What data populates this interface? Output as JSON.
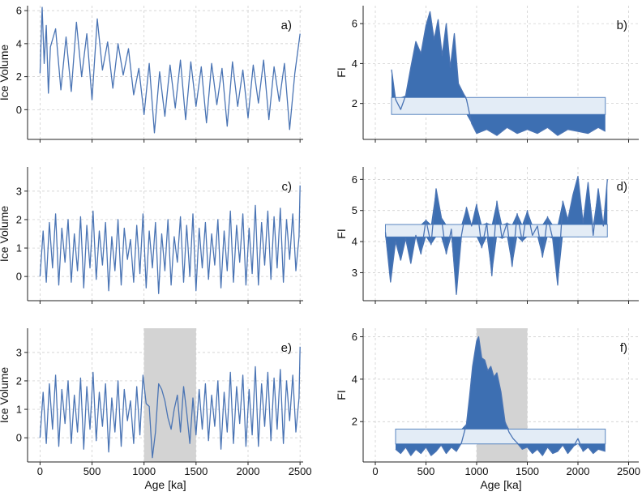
{
  "colors": {
    "line": "#4a74b4",
    "fill": "#3d6fb2",
    "band": "#e3ecf6",
    "band_edge": "#5a86c0",
    "shade": "#d3d3d3",
    "grid": "#c8c8c8"
  },
  "chart_data": [
    {
      "panel": "a)",
      "type": "line",
      "ylabel": "Ice Volume",
      "xlabel": "",
      "xlim": [
        -120,
        2530
      ],
      "ylim": [
        -1.8,
        6.3
      ],
      "yticks": [
        0,
        2,
        4,
        6
      ],
      "xticks": [
        0,
        500,
        1000,
        1500,
        2000,
        2500
      ],
      "show_xticklabels": false,
      "grid": true,
      "series": [
        {
          "x": [
            0,
            20,
            40,
            60,
            80,
            100,
            150,
            200,
            250,
            300,
            350,
            400,
            450,
            500,
            550,
            600,
            650,
            700,
            750,
            800,
            850,
            900,
            950,
            1000,
            1050,
            1100,
            1150,
            1200,
            1250,
            1300,
            1350,
            1400,
            1450,
            1500,
            1550,
            1600,
            1650,
            1700,
            1750,
            1800,
            1850,
            1900,
            1950,
            2000,
            2050,
            2100,
            2150,
            2200,
            2250,
            2300,
            2350,
            2400,
            2450,
            2500
          ],
          "y": [
            2.2,
            6.2,
            2.8,
            5.1,
            1.0,
            3.8,
            4.9,
            1.2,
            4.4,
            1.1,
            5.3,
            2.0,
            4.6,
            0.6,
            5.5,
            2.4,
            4.1,
            1.3,
            4.0,
            2.1,
            3.7,
            0.9,
            2.5,
            -0.3,
            2.8,
            -1.4,
            2.3,
            -0.4,
            2.7,
            0.1,
            3.0,
            -0.6,
            2.9,
            0.2,
            2.6,
            -0.8,
            2.8,
            0.3,
            2.5,
            -1.0,
            2.9,
            0.2,
            2.4,
            -0.5,
            2.7,
            0.4,
            3.0,
            -0.6,
            2.6,
            0.5,
            2.8,
            -1.2,
            2.2,
            4.6
          ]
        }
      ]
    },
    {
      "panel": "b)",
      "type": "area",
      "ylabel": "FI",
      "xlabel": "",
      "xlim": [
        -120,
        2600
      ],
      "ylim": [
        0.2,
        6.9
      ],
      "yticks": [
        2,
        4,
        6
      ],
      "xticks": [
        0,
        500,
        1000,
        1500,
        2000,
        2500
      ],
      "show_xticklabels": false,
      "grid": true,
      "band": [
        1.45,
        2.3
      ],
      "series": [
        {
          "x": [
            160,
            200,
            250,
            300,
            350,
            400,
            450,
            500,
            540,
            580,
            620,
            660,
            700,
            740,
            780,
            820,
            860,
            900,
            950,
            1000,
            1100,
            1200,
            1300,
            1400,
            1500,
            1600,
            1700,
            1800,
            1900,
            2000,
            2100,
            2200,
            2270
          ],
          "y": [
            3.7,
            2.2,
            1.7,
            2.4,
            3.8,
            5.1,
            4.5,
            5.9,
            6.6,
            5.2,
            6.2,
            4.4,
            6.0,
            3.8,
            5.5,
            3.0,
            2.6,
            2.2,
            1.0,
            0.5,
            0.7,
            0.4,
            0.8,
            0.5,
            0.7,
            0.5,
            0.8,
            0.4,
            0.7,
            0.6,
            0.5,
            0.8,
            0.6
          ]
        }
      ]
    },
    {
      "panel": "c)",
      "type": "line",
      "ylabel": "Ice Volume",
      "xlabel": "",
      "xlim": [
        -120,
        2530
      ],
      "ylim": [
        -0.85,
        3.85
      ],
      "yticks": [
        0,
        1,
        2,
        3
      ],
      "xticks": [
        0,
        500,
        1000,
        1500,
        2000,
        2500
      ],
      "show_xticklabels": false,
      "grid": true,
      "series": [
        {
          "x": [
            0,
            30,
            60,
            90,
            120,
            150,
            180,
            210,
            240,
            270,
            300,
            330,
            360,
            390,
            420,
            450,
            480,
            510,
            540,
            570,
            600,
            630,
            660,
            690,
            720,
            750,
            780,
            810,
            840,
            870,
            900,
            930,
            960,
            990,
            1020,
            1050,
            1080,
            1110,
            1140,
            1170,
            1200,
            1230,
            1260,
            1290,
            1320,
            1350,
            1380,
            1410,
            1440,
            1470,
            1500,
            1530,
            1560,
            1590,
            1620,
            1650,
            1680,
            1710,
            1740,
            1770,
            1800,
            1830,
            1860,
            1890,
            1920,
            1950,
            1980,
            2010,
            2040,
            2070,
            2100,
            2130,
            2160,
            2190,
            2220,
            2250,
            2280,
            2310,
            2340,
            2370,
            2400,
            2430,
            2460,
            2490,
            2500
          ],
          "y": [
            0.0,
            1.6,
            -0.2,
            1.9,
            0.3,
            2.2,
            -0.3,
            1.7,
            0.5,
            2.0,
            -0.2,
            1.5,
            0.2,
            2.1,
            -0.4,
            1.8,
            0.3,
            2.3,
            -0.1,
            1.6,
            0.4,
            1.9,
            -0.5,
            1.4,
            0.2,
            2.0,
            -0.3,
            1.7,
            0.6,
            1.3,
            -0.2,
            1.8,
            0.1,
            2.2,
            -0.4,
            1.6,
            0.3,
            1.9,
            -0.6,
            1.5,
            0.2,
            2.0,
            -0.3,
            1.4,
            0.5,
            2.1,
            -0.2,
            1.8,
            0.0,
            2.2,
            -0.5,
            1.7,
            0.3,
            1.9,
            -0.1,
            1.5,
            0.4,
            2.0,
            -0.4,
            1.6,
            0.2,
            2.3,
            -0.2,
            1.8,
            0.5,
            2.2,
            -0.3,
            1.7,
            0.1,
            2.5,
            -0.3,
            1.9,
            0.4,
            2.3,
            -0.1,
            2.1,
            0.3,
            2.4,
            -0.2,
            2.0,
            0.6,
            2.2,
            0.2,
            1.4,
            3.2
          ]
        }
      ]
    },
    {
      "panel": "d)",
      "type": "area",
      "ylabel": "FI",
      "xlabel": "",
      "xlim": [
        -120,
        2600
      ],
      "ylim": [
        2.1,
        6.4
      ],
      "yticks": [
        3,
        4,
        5,
        6
      ],
      "xticks": [
        0,
        500,
        1000,
        1500,
        2000,
        2500
      ],
      "show_xticklabels": false,
      "grid": true,
      "band": [
        4.15,
        4.55
      ],
      "series": [
        {
          "x": [
            100,
            150,
            200,
            250,
            300,
            350,
            400,
            450,
            500,
            550,
            600,
            650,
            700,
            750,
            800,
            850,
            900,
            950,
            1000,
            1050,
            1100,
            1150,
            1200,
            1250,
            1300,
            1350,
            1400,
            1450,
            1500,
            1550,
            1600,
            1650,
            1700,
            1750,
            1800,
            1850,
            1900,
            1950,
            2000,
            2050,
            2100,
            2150,
            2200,
            2250,
            2290
          ],
          "y": [
            4.3,
            2.7,
            4.0,
            3.4,
            4.1,
            3.3,
            4.2,
            3.6,
            4.7,
            3.9,
            5.7,
            4.8,
            3.6,
            4.4,
            2.3,
            4.2,
            5.1,
            4.5,
            5.2,
            3.8,
            4.6,
            2.9,
            5.3,
            4.1,
            4.6,
            3.2,
            4.9,
            4.0,
            5.0,
            4.2,
            4.5,
            3.5,
            4.8,
            4.1,
            2.6,
            5.3,
            4.7,
            5.5,
            6.1,
            4.6,
            5.9,
            4.2,
            5.7,
            4.5,
            6.0
          ]
        }
      ]
    },
    {
      "panel": "e)",
      "type": "line",
      "ylabel": "Ice Volume",
      "xlabel": "Age [ka]",
      "xlim": [
        -120,
        2530
      ],
      "ylim": [
        -0.85,
        3.85
      ],
      "yticks": [
        0,
        1,
        2,
        3
      ],
      "xticks": [
        0,
        500,
        1000,
        1500,
        2000,
        2500
      ],
      "show_xticklabels": true,
      "grid": true,
      "shade": [
        1000,
        1500
      ],
      "series": [
        {
          "x": [
            0,
            30,
            60,
            90,
            120,
            150,
            180,
            210,
            240,
            270,
            300,
            330,
            360,
            390,
            420,
            450,
            480,
            510,
            540,
            570,
            600,
            630,
            660,
            690,
            720,
            750,
            780,
            810,
            840,
            870,
            900,
            930,
            960,
            990,
            1020,
            1050,
            1080,
            1110,
            1140,
            1170,
            1200,
            1230,
            1260,
            1290,
            1320,
            1350,
            1380,
            1410,
            1440,
            1470,
            1500,
            1530,
            1560,
            1590,
            1620,
            1650,
            1680,
            1710,
            1740,
            1770,
            1800,
            1830,
            1860,
            1890,
            1920,
            1950,
            1980,
            2010,
            2040,
            2070,
            2100,
            2130,
            2160,
            2190,
            2220,
            2250,
            2280,
            2310,
            2340,
            2370,
            2400,
            2430,
            2460,
            2490,
            2500
          ],
          "y": [
            0.0,
            1.6,
            -0.2,
            1.9,
            0.3,
            2.2,
            -0.3,
            1.7,
            0.5,
            2.0,
            -0.2,
            1.5,
            0.2,
            2.1,
            -0.4,
            1.8,
            0.3,
            2.3,
            -0.1,
            1.6,
            0.4,
            1.9,
            -0.5,
            1.4,
            0.2,
            2.0,
            -0.3,
            1.7,
            0.6,
            1.3,
            -0.2,
            1.8,
            0.1,
            2.2,
            1.2,
            1.1,
            -0.7,
            0.2,
            1.9,
            1.7,
            1.3,
            0.7,
            0.3,
            1.0,
            1.5,
            0.2,
            1.8,
            0.9,
            -0.2,
            1.4,
            0.1,
            1.7,
            0.3,
            1.9,
            -0.1,
            1.5,
            0.4,
            2.0,
            -0.4,
            1.6,
            0.2,
            2.3,
            -0.2,
            1.8,
            0.5,
            2.2,
            -0.3,
            1.7,
            0.1,
            2.5,
            -0.3,
            1.9,
            0.4,
            2.3,
            -0.1,
            2.1,
            0.3,
            2.4,
            -0.2,
            2.0,
            0.6,
            2.2,
            0.2,
            1.4,
            3.2
          ]
        }
      ]
    },
    {
      "panel": "f)",
      "type": "area",
      "ylabel": "FI",
      "xlabel": "Age [ka]",
      "xlim": [
        -120,
        2600
      ],
      "ylim": [
        0.1,
        6.4
      ],
      "yticks": [
        2,
        4,
        6
      ],
      "xticks": [
        0,
        500,
        1000,
        1500,
        2000,
        2500
      ],
      "show_xticklabels": true,
      "grid": true,
      "shade": [
        1000,
        1500
      ],
      "band": [
        0.95,
        1.65
      ],
      "series": [
        {
          "x": [
            200,
            250,
            300,
            350,
            400,
            450,
            500,
            550,
            600,
            650,
            700,
            750,
            800,
            850,
            900,
            930,
            960,
            1000,
            1020,
            1050,
            1080,
            1110,
            1140,
            1170,
            1200,
            1240,
            1280,
            1320,
            1360,
            1400,
            1450,
            1500,
            1550,
            1600,
            1650,
            1700,
            1750,
            1800,
            1850,
            1900,
            1950,
            2000,
            2050,
            2100,
            2150,
            2200,
            2270
          ],
          "y": [
            0.7,
            0.5,
            0.8,
            0.4,
            0.7,
            0.5,
            0.8,
            0.4,
            0.6,
            0.9,
            0.5,
            0.8,
            0.6,
            1.0,
            1.9,
            3.2,
            4.6,
            5.8,
            6.0,
            5.0,
            4.9,
            4.4,
            4.6,
            4.1,
            4.3,
            3.4,
            2.0,
            1.5,
            1.2,
            1.0,
            0.7,
            0.8,
            0.5,
            0.7,
            0.4,
            0.8,
            0.5,
            0.6,
            0.9,
            0.5,
            0.8,
            1.2,
            0.6,
            0.8,
            0.5,
            0.7,
            0.6
          ]
        }
      ]
    }
  ]
}
